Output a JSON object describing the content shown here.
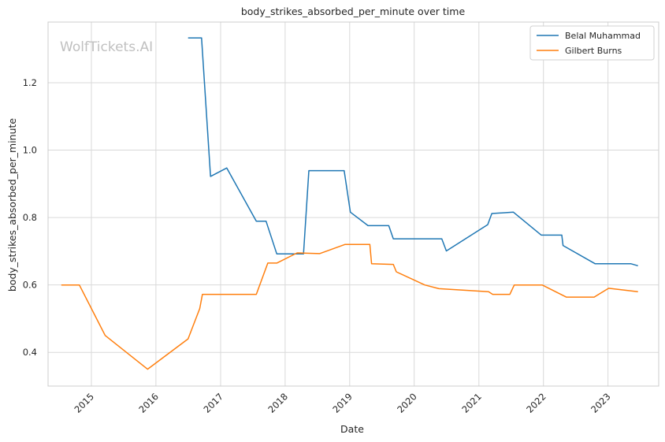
{
  "chart_data": {
    "type": "line",
    "title": "body_strikes_absorbed_per_minute over time",
    "xlabel": "Date",
    "ylabel": "body_strikes_absorbed_per_minute",
    "watermark": "WolfTickets.AI",
    "xlim": [
      "2014-05-01",
      "2023-10-15"
    ],
    "ylim": [
      0.3,
      1.38
    ],
    "x_ticks": [
      "2015-01-01",
      "2016-01-01",
      "2017-01-01",
      "2018-01-01",
      "2019-01-01",
      "2020-01-01",
      "2021-01-01",
      "2022-01-01",
      "2023-01-01"
    ],
    "x_tick_labels": [
      "2015",
      "2016",
      "2017",
      "2018",
      "2019",
      "2020",
      "2021",
      "2022",
      "2023"
    ],
    "y_ticks": [
      0.4,
      0.6,
      0.8,
      1.0,
      1.2
    ],
    "y_tick_labels": [
      "0.4",
      "0.6",
      "0.8",
      "1.0",
      "1.2"
    ],
    "grid": true,
    "legend_position": "top-right",
    "series": [
      {
        "name": "Belal Muhammad",
        "color": "#1f77b4",
        "points": [
          [
            "2016-07-01",
            1.333
          ],
          [
            "2016-09-15",
            1.333
          ],
          [
            "2016-11-05",
            0.922
          ],
          [
            "2017-02-05",
            0.947
          ],
          [
            "2017-07-22",
            0.789
          ],
          [
            "2017-09-15",
            0.789
          ],
          [
            "2017-11-15",
            0.692
          ],
          [
            "2018-04-15",
            0.692
          ],
          [
            "2018-05-15",
            0.939
          ],
          [
            "2018-12-01",
            0.939
          ],
          [
            "2019-01-05",
            0.816
          ],
          [
            "2019-04-15",
            0.776
          ],
          [
            "2019-08-10",
            0.776
          ],
          [
            "2019-09-05",
            0.737
          ],
          [
            "2020-06-05",
            0.737
          ],
          [
            "2020-07-01",
            0.701
          ],
          [
            "2021-02-20",
            0.779
          ],
          [
            "2021-03-15",
            0.812
          ],
          [
            "2021-07-15",
            0.816
          ],
          [
            "2021-12-20",
            0.748
          ],
          [
            "2022-04-15",
            0.748
          ],
          [
            "2022-04-22",
            0.717
          ],
          [
            "2022-10-20",
            0.663
          ],
          [
            "2023-05-10",
            0.663
          ],
          [
            "2023-06-20",
            0.657
          ]
        ]
      },
      {
        "name": "Gilbert Burns",
        "color": "#ff7f0e",
        "points": [
          [
            "2014-07-15",
            0.6
          ],
          [
            "2014-10-25",
            0.6
          ],
          [
            "2015-03-20",
            0.45
          ],
          [
            "2015-11-15",
            0.35
          ],
          [
            "2016-07-01",
            0.44
          ],
          [
            "2016-09-05",
            0.53
          ],
          [
            "2016-09-20",
            0.572
          ],
          [
            "2017-07-22",
            0.572
          ],
          [
            "2017-09-25",
            0.665
          ],
          [
            "2017-11-15",
            0.665
          ],
          [
            "2018-03-10",
            0.695
          ],
          [
            "2018-07-15",
            0.693
          ],
          [
            "2018-12-05",
            0.72
          ],
          [
            "2019-04-25",
            0.72
          ],
          [
            "2019-05-05",
            0.663
          ],
          [
            "2019-09-05",
            0.661
          ],
          [
            "2019-09-22",
            0.639
          ],
          [
            "2020-03-01",
            0.6
          ],
          [
            "2020-05-20",
            0.589
          ],
          [
            "2021-02-25",
            0.58
          ],
          [
            "2021-03-20",
            0.572
          ],
          [
            "2021-06-25",
            0.572
          ],
          [
            "2021-07-20",
            0.6
          ],
          [
            "2021-12-25",
            0.6
          ],
          [
            "2022-05-10",
            0.564
          ],
          [
            "2022-10-15",
            0.564
          ],
          [
            "2023-01-05",
            0.59
          ],
          [
            "2023-06-20",
            0.58
          ]
        ]
      }
    ]
  }
}
